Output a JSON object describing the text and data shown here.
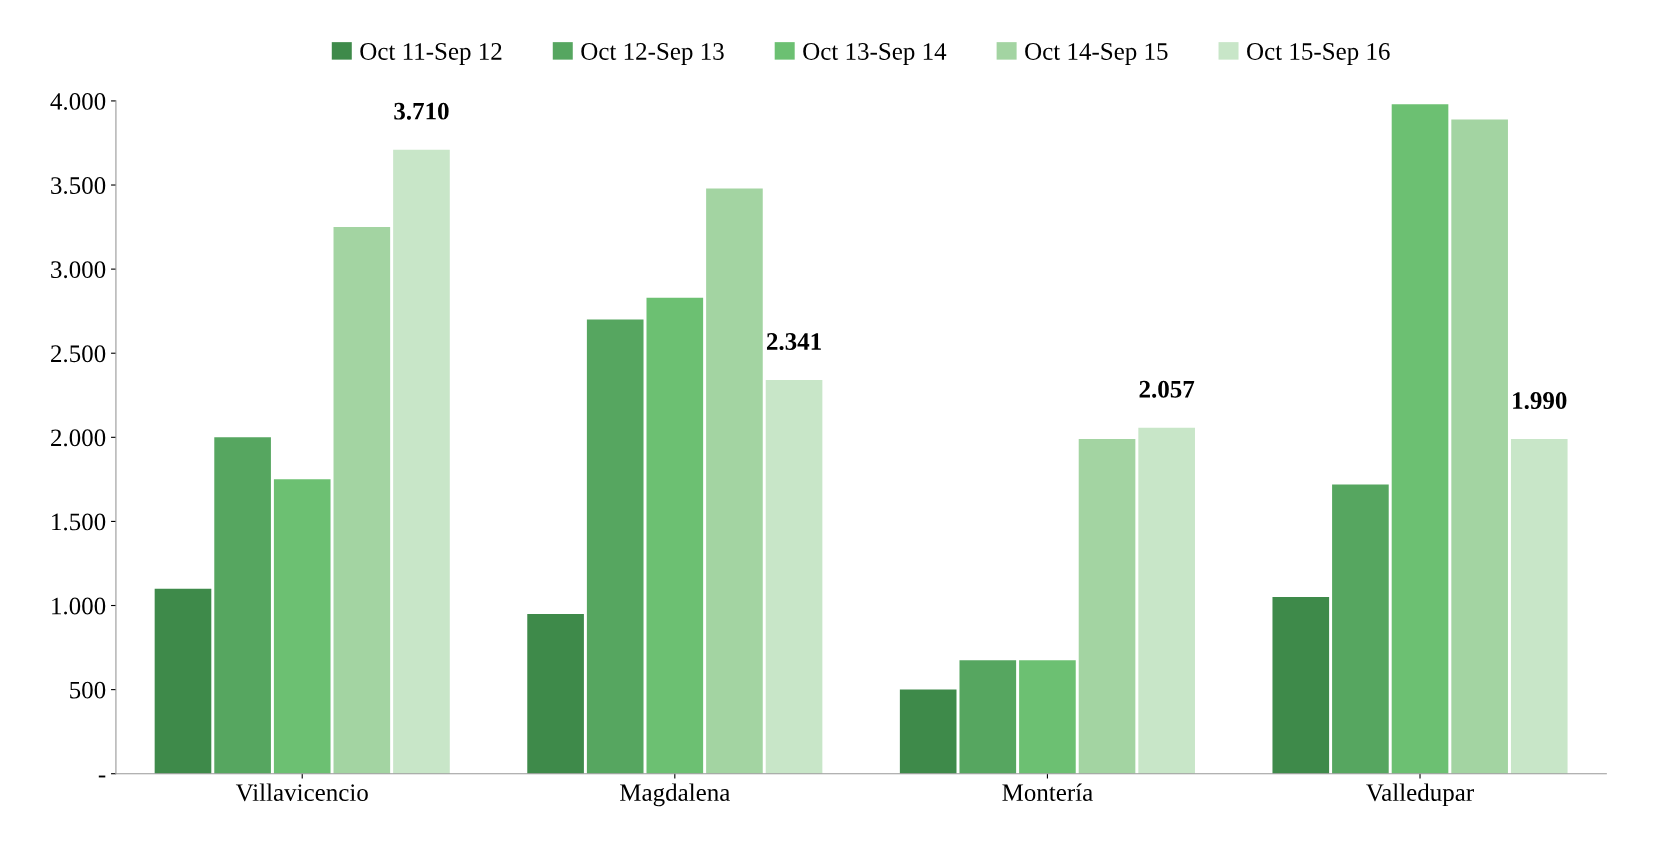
{
  "chart_data": {
    "type": "bar",
    "categories": [
      "Villavicencio",
      "Magdalena",
      "Montería",
      "Valledupar"
    ],
    "series": [
      {
        "name": "Oct 11-Sep 12",
        "color": "#3e8a4a",
        "values": [
          1100,
          950,
          500,
          1050
        ]
      },
      {
        "name": "Oct 12-Sep 13",
        "color": "#56a660",
        "values": [
          2000,
          2700,
          675,
          1720
        ]
      },
      {
        "name": "Oct 13-Sep 14",
        "color": "#6cc072",
        "values": [
          1750,
          2830,
          675,
          3980
        ]
      },
      {
        "name": "Oct 14-Sep 15",
        "color": "#a3d4a2",
        "values": [
          3250,
          3480,
          1990,
          3890
        ]
      },
      {
        "name": "Oct 15-Sep 16",
        "color": "#c8e6c8",
        "values": [
          3710,
          2341,
          2057,
          1990
        ],
        "value_labels": [
          "3.710",
          "2.341",
          "2.057",
          "1.990"
        ]
      }
    ],
    "ylim": [
      0,
      4000
    ],
    "yticks": [
      {
        "value": 0,
        "label": "-"
      },
      {
        "value": 500,
        "label": "500"
      },
      {
        "value": 1000,
        "label": "1.000"
      },
      {
        "value": 1500,
        "label": "1.500"
      },
      {
        "value": 2000,
        "label": "2.000"
      },
      {
        "value": 2500,
        "label": "2.500"
      },
      {
        "value": 3000,
        "label": "3.000"
      },
      {
        "value": 3500,
        "label": "3.500"
      },
      {
        "value": 4000,
        "label": "4.000"
      }
    ],
    "grid": false,
    "legend": "top"
  }
}
